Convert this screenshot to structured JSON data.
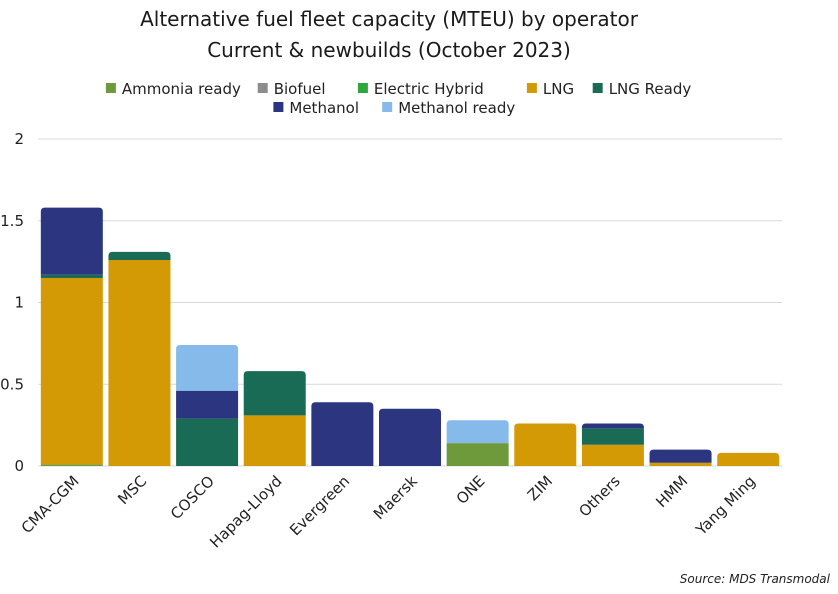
{
  "chart_data": {
    "type": "bar",
    "stacked": true,
    "title": "Alternative fuel fleet capacity (MTEU) by operator",
    "subtitle": "Current & newbuilds (October 2023)",
    "source": "Source: MDS Transmodal",
    "xlabel": "",
    "ylabel": "",
    "ylim": [
      0,
      2
    ],
    "yticks": [
      0,
      0.5,
      1,
      1.5,
      2
    ],
    "ytick_labels": [
      "0",
      "0.5",
      "1",
      "1.5",
      "2"
    ],
    "grid": true,
    "legend_position": "top",
    "categories": [
      "CMA-CGM",
      "MSC",
      "COSCO",
      "Hapag-Lloyd",
      "Evergreen",
      "Maersk",
      "ONE",
      "ZIM",
      "Others",
      "HMM",
      "Yang Ming"
    ],
    "series": [
      {
        "name": "Ammonia ready",
        "color": "#6f9a3b",
        "values": [
          0.01,
          0,
          0,
          0,
          0,
          0,
          0.14,
          0,
          0,
          0,
          0
        ]
      },
      {
        "name": "Biofuel",
        "color": "#8c8c8c",
        "values": [
          0,
          0,
          0,
          0,
          0,
          0,
          0,
          0,
          0,
          0,
          0
        ]
      },
      {
        "name": "Electric Hybrid",
        "color": "#2ea83c",
        "values": [
          0,
          0,
          0,
          0,
          0,
          0,
          0,
          0,
          0,
          0,
          0
        ]
      },
      {
        "name": "LNG",
        "color": "#d49a06",
        "values": [
          1.14,
          1.26,
          0,
          0.31,
          0,
          0,
          0,
          0.26,
          0.13,
          0.02,
          0.08
        ]
      },
      {
        "name": "LNG Ready",
        "color": "#1a6b55",
        "values": [
          0.02,
          0.05,
          0.29,
          0.27,
          0,
          0,
          0,
          0,
          0.1,
          0,
          0
        ]
      },
      {
        "name": "Methanol",
        "color": "#2b3580",
        "values": [
          0.41,
          0,
          0.17,
          0,
          0.39,
          0.35,
          0,
          0,
          0.03,
          0.08,
          0
        ]
      },
      {
        "name": "Methanol ready",
        "color": "#85baea",
        "values": [
          0,
          0,
          0.28,
          0,
          0,
          0,
          0.14,
          0,
          0,
          0,
          0
        ]
      }
    ]
  }
}
